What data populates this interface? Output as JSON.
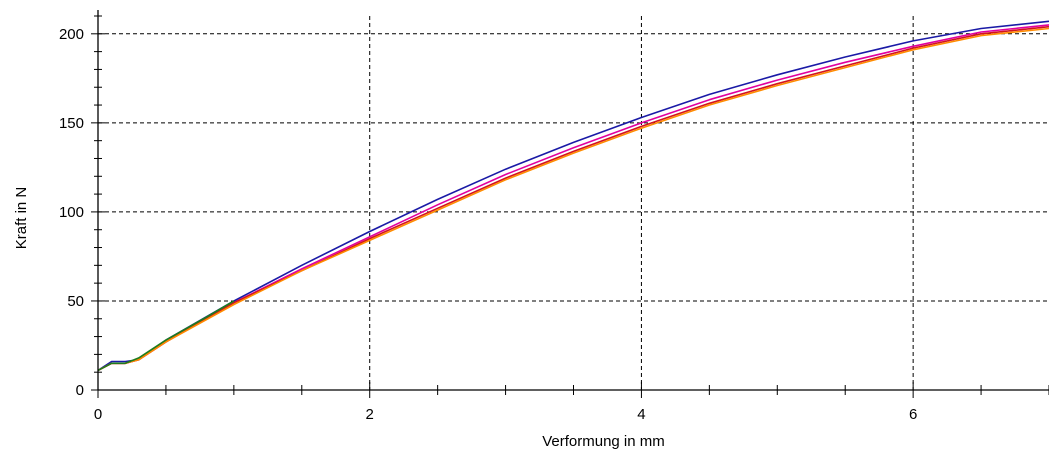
{
  "chart_data": {
    "type": "line",
    "title": "",
    "xlabel": "Verformung in mm",
    "ylabel": "Kraft in N",
    "xlim": [
      0,
      7
    ],
    "ylim": [
      0,
      210
    ],
    "x_ticks": [
      0,
      2,
      4,
      6
    ],
    "x_tick_labels": [
      "0",
      "2",
      "4",
      "6"
    ],
    "y_ticks": [
      0,
      50,
      100,
      150,
      200
    ],
    "y_tick_labels": [
      "0",
      "50",
      "100",
      "150",
      "200"
    ],
    "grid": true,
    "legend": "none",
    "series": [
      {
        "color": "#1a1aa6",
        "x": [
          0,
          0.1,
          0.2,
          0.3,
          0.5,
          1.0,
          1.5,
          2.0,
          2.5,
          3.0,
          3.5,
          4.0,
          4.5,
          5.0,
          5.5,
          6.0,
          6.5,
          7.0
        ],
        "y": [
          11,
          16,
          16,
          17,
          28,
          50,
          70,
          89,
          107,
          124,
          139,
          153,
          166,
          177,
          187,
          196,
          203,
          207
        ]
      },
      {
        "color": "#e000a0",
        "x": [
          0,
          0.1,
          0.2,
          0.3,
          0.5,
          1.0,
          1.5,
          2.0,
          2.5,
          3.0,
          3.5,
          4.0,
          4.5,
          5.0,
          5.5,
          6.0,
          6.5,
          7.0
        ],
        "y": [
          11,
          15,
          15,
          17,
          27,
          49,
          68,
          86,
          104,
          121,
          136,
          150,
          163,
          174,
          184,
          193,
          201,
          205
        ]
      },
      {
        "color": "#d2141e",
        "x": [
          0,
          0.1,
          0.2,
          0.3,
          0.5,
          1.0,
          1.5,
          2.0,
          2.5,
          3.0,
          3.5,
          4.0,
          4.5,
          5.0,
          5.5,
          6.0,
          6.5,
          7.0
        ],
        "y": [
          11,
          15,
          15,
          17,
          27,
          49,
          67,
          85,
          102,
          119,
          134,
          148,
          161,
          172,
          182,
          192,
          200,
          204
        ]
      },
      {
        "color": "#ff8c00",
        "x": [
          0,
          0.1,
          0.2,
          0.3,
          0.5,
          1.0,
          1.5,
          2.0,
          2.5,
          3.0,
          3.5,
          4.0,
          4.5,
          5.0,
          5.5,
          6.0,
          6.5,
          7.0
        ],
        "y": [
          11,
          15,
          15,
          17,
          27,
          48,
          67,
          84,
          101,
          118,
          133,
          147,
          160,
          171,
          181,
          191,
          199,
          203
        ]
      },
      {
        "color": "#1e7d1e",
        "x": [
          0,
          0.1,
          0.2,
          0.3,
          0.5,
          0.8,
          1.0
        ],
        "y": [
          11,
          15,
          15,
          18,
          28,
          41,
          50
        ]
      }
    ]
  }
}
